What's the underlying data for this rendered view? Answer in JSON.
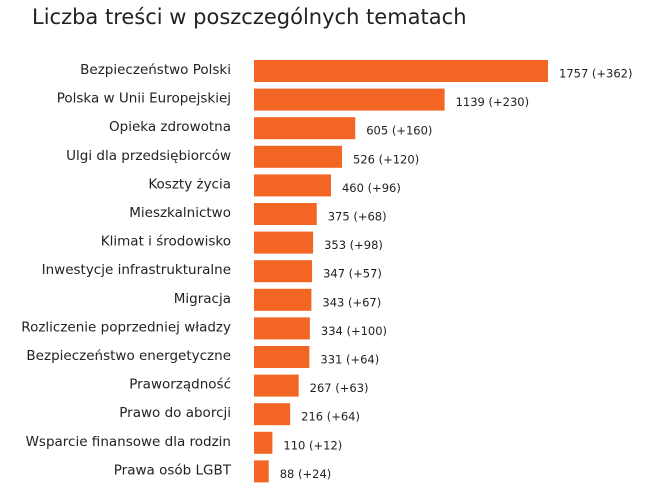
{
  "colors": {
    "bar": "#F26522",
    "text": "#222222"
  },
  "chart_data": {
    "type": "bar",
    "orientation": "horizontal",
    "title": "Liczba treści w poszczególnych tematach",
    "xlabel": "",
    "ylabel": "",
    "xlim": [
      0,
      1757
    ],
    "grid": false,
    "categories": [
      "Bezpieczeństwo Polski",
      "Polska w Unii Europejskiej",
      "Opieka zdrowotna",
      "Ulgi dla przedsiębiorców",
      "Koszty życia",
      "Mieszkalnictwo",
      "Klimat i środowisko",
      "Inwestycje infrastrukturalne",
      "Migracja",
      "Rozliczenie poprzedniej władzy",
      "Bezpieczeństwo energetyczne",
      "Praworządność",
      "Prawo do aborcji",
      "Wsparcie finansowe dla rodzin",
      "Prawa osób LGBT"
    ],
    "values": [
      1757,
      1139,
      605,
      526,
      460,
      375,
      353,
      347,
      343,
      334,
      331,
      267,
      216,
      110,
      88
    ],
    "data_labels": [
      "1757 (+362)",
      "1139 (+230)",
      "605 (+160)",
      "526 (+120)",
      "460 (+96)",
      "375 (+68)",
      "353 (+98)",
      "347 (+57)",
      "343 (+67)",
      "334 (+100)",
      "331 (+64)",
      "267 (+63)",
      "216 (+64)",
      "110 (+12)",
      "88 (+24)"
    ]
  }
}
